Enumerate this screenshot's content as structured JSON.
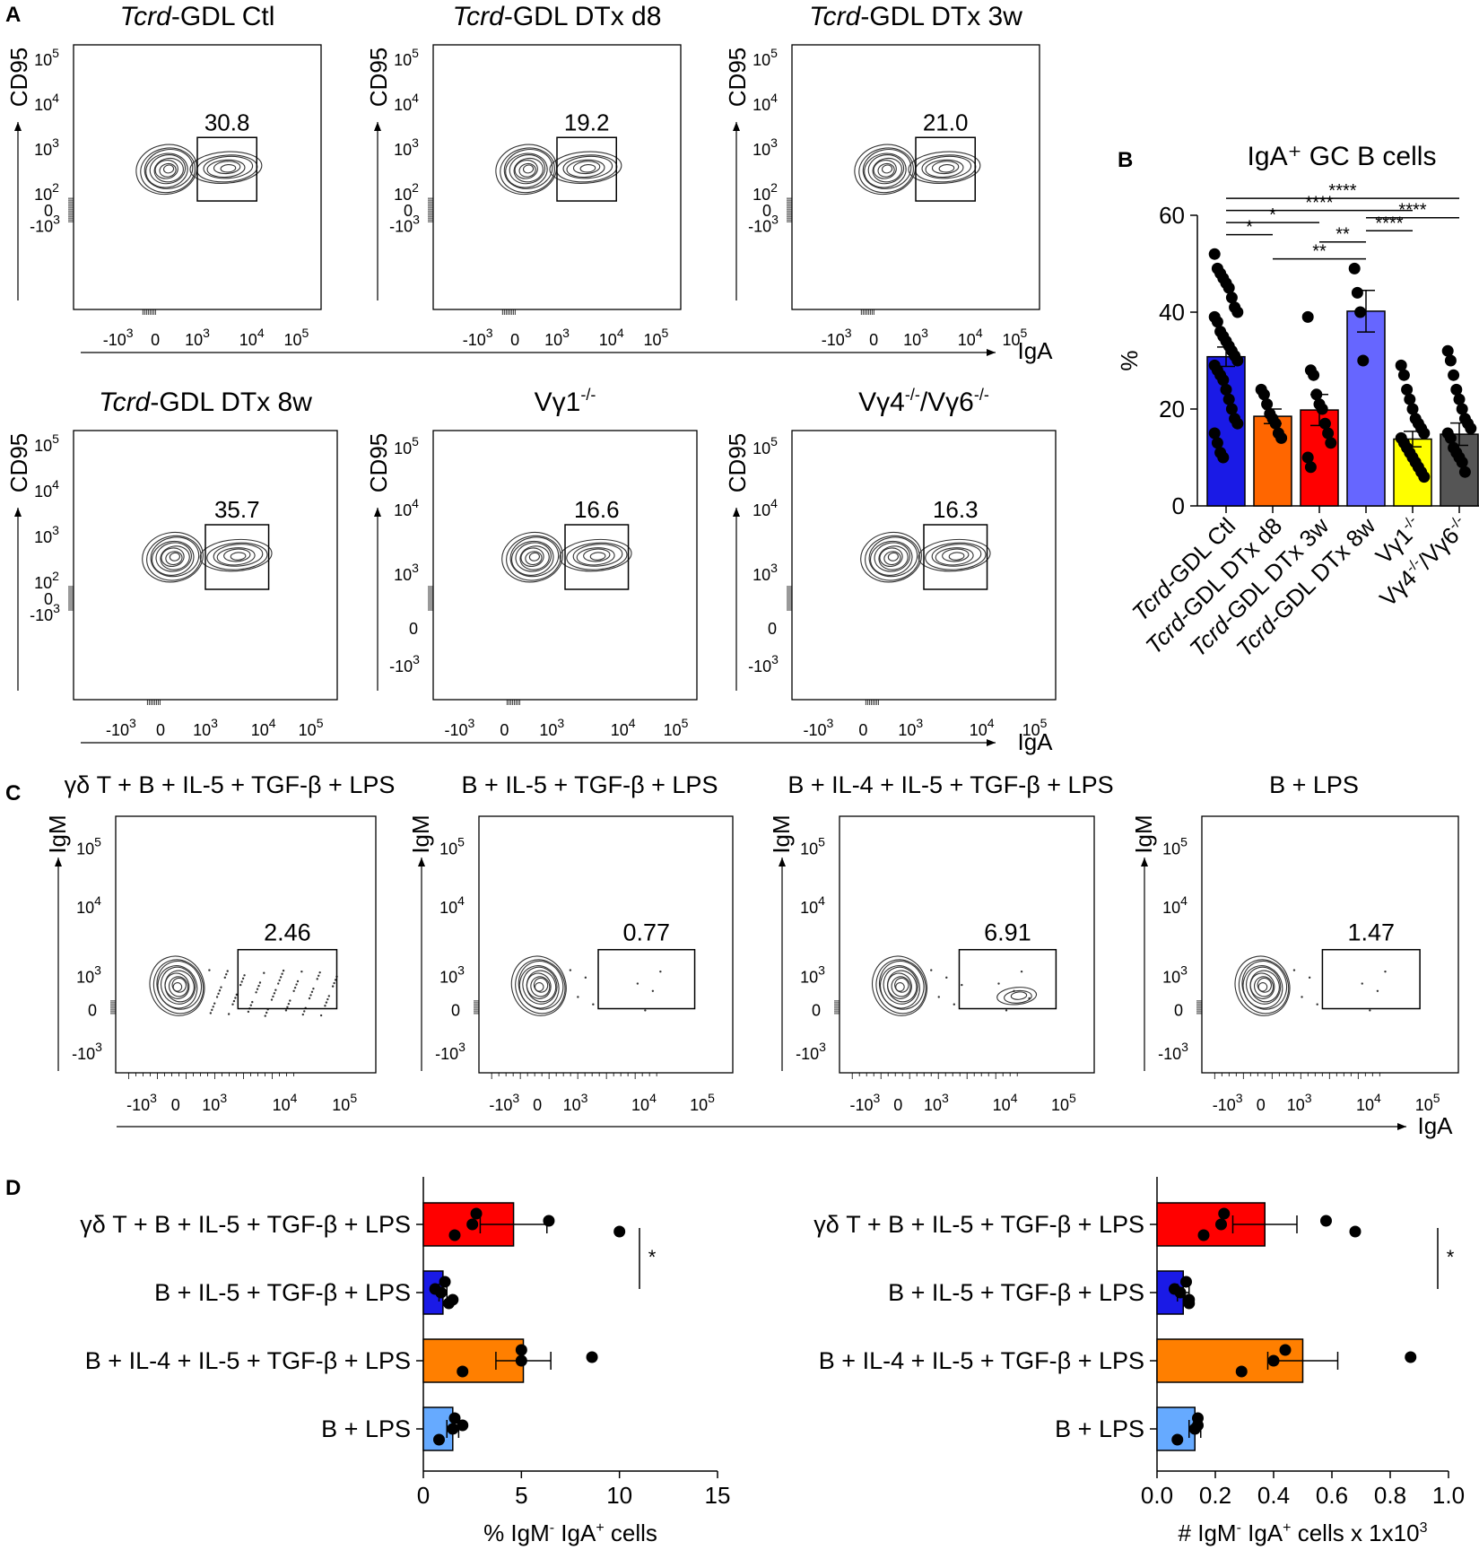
{
  "panel_letters": {
    "a": "A",
    "b": "B",
    "c": "C",
    "d": "D"
  },
  "axis_text": {
    "cd95": "CD95",
    "iga": "IgA",
    "igm": "IgM",
    "t_m3": "-10",
    "t0": "0",
    "t3": "10",
    "t4": "10",
    "t5": "10",
    "e3": "3",
    "e4": "4",
    "e5": "5",
    "e2": "2"
  },
  "flow_plots": [
    {
      "prefix": "Tcrd",
      "title": "-GDL Ctl",
      "gate_value": "30.8"
    },
    {
      "prefix": "Tcrd",
      "title": "-GDL DTx d8",
      "gate_value": "19.2"
    },
    {
      "prefix": "Tcrd",
      "title": "-GDL DTx 3w",
      "gate_value": "21.0"
    },
    {
      "prefix": "Tcrd",
      "title": "-GDL DTx 8w",
      "gate_value": "35.7"
    },
    {
      "prefix": "",
      "title": "Vγ1",
      "title_sup": "-/-",
      "gate_value": "16.6"
    },
    {
      "prefix": "",
      "title": "Vγ4",
      "title_sup": "-/-",
      "title_b": "/Vγ6",
      "title_sup_b": "-/-",
      "gate_value": "16.3"
    }
  ],
  "invitro_plots": [
    {
      "title": "γδ T + B + IL-5 + TGF-β + LPS",
      "gate_value": "2.46"
    },
    {
      "title": "B + IL-5 + TGF-β + LPS",
      "gate_value": "0.77"
    },
    {
      "title": "B + IL-4 + IL-5 + TGF-β + LPS",
      "gate_value": "6.91"
    },
    {
      "title": "B + LPS",
      "gate_value": "1.47"
    }
  ],
  "chart_data": [
    {
      "type": "bar",
      "title": "IgA⁺ GC B cells",
      "ylabel": "%",
      "ylim": [
        0,
        60
      ],
      "yticks": [
        0,
        20,
        40,
        60
      ],
      "categories": [
        {
          "prefix": "Tcrd",
          "rest": "-GDL Ctl",
          "color": "#1a1ae6"
        },
        {
          "prefix": "Tcrd",
          "rest": "-GDL DTx d8",
          "color": "#ff6600"
        },
        {
          "prefix": "Tcrd",
          "rest": "-GDL DTx 3w",
          "color": "#ff0000"
        },
        {
          "prefix": "Tcrd",
          "rest": "-GDL DTx 8w",
          "color": "#6666ff"
        },
        {
          "prefix": "",
          "rest": "Vγ1",
          "sup": "-/-",
          "color": "#ffff00"
        },
        {
          "prefix": "",
          "rest": "Vγ4",
          "sup": "-/-",
          "rest_b": "/Vγ6",
          "sup_b": "-/-",
          "color": "#555555"
        }
      ],
      "values": [
        30.8,
        18.5,
        19.8,
        40.2,
        13.8,
        14.8
      ],
      "errors": [
        2.0,
        1.5,
        3.2,
        4.3,
        1.6,
        2.3
      ],
      "points": [
        [
          52,
          49,
          48,
          47,
          46,
          45,
          43,
          41,
          40,
          39,
          38,
          36,
          35,
          34,
          33,
          32,
          31,
          30,
          29,
          28,
          27,
          26,
          24,
          22,
          20,
          18,
          17,
          15,
          13,
          11,
          10
        ],
        [
          24,
          23,
          21,
          19,
          18,
          17,
          15,
          14
        ],
        [
          39,
          28,
          27,
          23,
          21,
          20,
          17,
          15,
          13,
          10,
          8
        ],
        [
          49,
          44,
          40,
          30
        ],
        [
          29,
          27,
          24,
          22,
          20,
          18,
          17,
          16,
          15,
          14,
          13,
          12,
          11,
          10,
          9,
          8,
          7,
          6
        ],
        [
          32,
          30,
          27,
          24,
          22,
          20,
          18,
          17,
          16,
          15,
          14,
          12,
          11,
          10,
          9,
          7
        ]
      ],
      "significance": [
        {
          "from": 0,
          "to": 1,
          "y": 56,
          "label": "*"
        },
        {
          "from": 0,
          "to": 2,
          "y": 58.5,
          "label": "*"
        },
        {
          "from": 0,
          "to": 4,
          "y": 61,
          "label": "****"
        },
        {
          "from": 0,
          "to": 5,
          "y": 63.5,
          "label": "****"
        },
        {
          "from": 1,
          "to": 3,
          "y": 51,
          "label": "**"
        },
        {
          "from": 2,
          "to": 3,
          "y": 54.5,
          "label": "**"
        },
        {
          "from": 3,
          "to": 4,
          "y": 56.8,
          "label": "****"
        },
        {
          "from": 3,
          "to": 5,
          "y": 59.5,
          "label": "****"
        }
      ]
    },
    {
      "type": "bar",
      "orientation": "horizontal",
      "xlabel": "% IgM- IgA+ cells",
      "xlabel_parts": {
        "a": "% IgM",
        "a_sup": "-",
        "b": " IgA",
        "b_sup": "+",
        "c": " cells"
      },
      "xlim": [
        0,
        15
      ],
      "xticks": [
        0,
        5,
        10,
        15
      ],
      "categories": [
        "γδ T + B + IL-5 + TGF-β + LPS",
        "B + IL-5 + TGF-β + LPS",
        "B + IL-4 + IL-5 + TGF-β + LPS",
        "B + LPS"
      ],
      "colors": [
        "#ff0000",
        "#1a1ae6",
        "#ff7f00",
        "#66aaff"
      ],
      "values": [
        4.6,
        1.0,
        5.1,
        1.5
      ],
      "errors": [
        1.7,
        0.2,
        1.4,
        0.3
      ],
      "points": [
        [
          2.7,
          2.5,
          1.6,
          6.4,
          10.0
        ],
        [
          1.1,
          0.9,
          1.3,
          0.6,
          1.5
        ],
        [
          5.0,
          5.0,
          2.0,
          8.6
        ],
        [
          1.6,
          1.5,
          0.8,
          2.0
        ]
      ],
      "significance": {
        "from": 0,
        "to": 1,
        "label": "*"
      }
    },
    {
      "type": "bar",
      "orientation": "horizontal",
      "xlabel": "# IgM- IgA+ cells x 1x103",
      "xlabel_parts": {
        "a": "# IgM",
        "a_sup": "-",
        "b": " IgA",
        "b_sup": "+",
        "c": " cells x 1x10",
        "c_sup": "3"
      },
      "xlim": [
        0,
        1.0
      ],
      "xticks": [
        0.0,
        0.2,
        0.4,
        0.6,
        0.8,
        1.0
      ],
      "xticklabels": [
        "0.0",
        "0.2",
        "0.4",
        "0.6",
        "0.8",
        "1.0"
      ],
      "categories": [
        "γδ T + B + IL-5 + TGF-β + LPS",
        "B + IL-5 + TGF-β + LPS",
        "B + IL-4 + IL-5 + TGF-β + LPS",
        "B + LPS"
      ],
      "colors": [
        "#ff0000",
        "#1a1ae6",
        "#ff7f00",
        "#66aaff"
      ],
      "values": [
        0.37,
        0.09,
        0.5,
        0.13
      ],
      "errors": [
        0.11,
        0.02,
        0.12,
        0.02
      ],
      "points": [
        [
          0.23,
          0.22,
          0.16,
          0.58,
          0.68
        ],
        [
          0.1,
          0.08,
          0.11,
          0.06,
          0.11
        ],
        [
          0.44,
          0.4,
          0.29,
          0.87
        ],
        [
          0.14,
          0.13,
          0.07,
          0.14
        ]
      ],
      "significance": {
        "from": 0,
        "to": 1,
        "label": "*"
      }
    }
  ]
}
